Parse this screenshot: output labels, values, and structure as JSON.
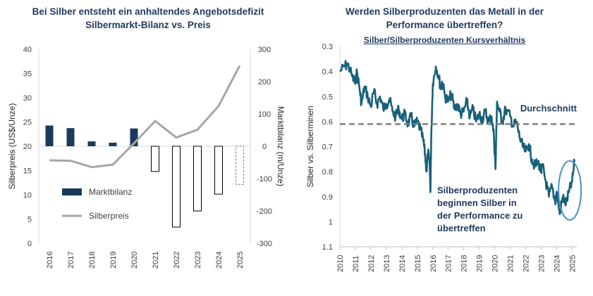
{
  "chart_data": [
    {
      "type": "bar",
      "title": "Bei Silber entsteht ein anhaltendes Angebotsdefizit",
      "subtitle": "Silbermarkt-Bilanz vs. Preis",
      "categories": [
        "2016",
        "2017",
        "2018",
        "2019",
        "2020",
        "2021",
        "2022",
        "2023",
        "2024",
        "2025"
      ],
      "ylabel": "Silberpreis (US$/Unze)",
      "y2label": "Marktbilanz (m/Unze)",
      "ylim": [
        0,
        40
      ],
      "y2lim": [
        -300,
        300
      ],
      "yticks": [
        "0",
        "5",
        "10",
        "15",
        "20",
        "25",
        "30",
        "35",
        "40"
      ],
      "y2ticks": [
        "-300",
        "-200",
        "-100",
        "0",
        "100",
        "200",
        "300"
      ],
      "legend_placement": "left-middle",
      "series": [
        {
          "name": "Marktbilanz",
          "axis": "right",
          "type": "bar",
          "color": "#1a3a5c",
          "values": [
            64,
            56,
            15,
            11,
            55,
            -78,
            -250,
            -200,
            -148,
            -118
          ],
          "styles": [
            "solid",
            "solid",
            "solid",
            "solid",
            "solid",
            "outline",
            "outline",
            "outline",
            "outline",
            "dashed"
          ]
        },
        {
          "name": "Silberpreis",
          "axis": "left",
          "type": "line",
          "color": "#a6a6a6",
          "values": [
            17.1,
            17.0,
            15.7,
            16.2,
            20.6,
            25.2,
            21.8,
            23.4,
            28.3,
            36.6
          ]
        }
      ]
    },
    {
      "type": "line",
      "title": "Werden Silberproduzenten das Metall in der Performance übertreffen?",
      "subtitle": "Silber/Silberproduzenten Kursverhältnis",
      "ylabel": "Silber vs. Silberminen",
      "xticks": [
        "2010",
        "2011",
        "2012",
        "2013",
        "2014",
        "2015",
        "2016",
        "2017",
        "2018",
        "2019",
        "2020",
        "2021",
        "2022",
        "2023",
        "2024",
        "2025"
      ],
      "yticks": [
        "0.3",
        "0.4",
        "0.5",
        "0.6",
        "0.7",
        "0.8",
        "0.9",
        "1",
        "1.1"
      ],
      "ylim": [
        0.3,
        1.1
      ],
      "y_inverted": true,
      "xlim": [
        2010,
        2025.3
      ],
      "average": 0.61,
      "average_label": "Durchschnitt",
      "annotation": "Silberproduzenten beginnen Silber in der Performance zu übertreffen",
      "color": "#17607a",
      "x": [
        2010.0,
        2010.3,
        2010.5,
        2010.8,
        2011.0,
        2011.1,
        2011.3,
        2011.4,
        2011.6,
        2011.8,
        2012.0,
        2012.2,
        2012.4,
        2012.6,
        2012.8,
        2013.0,
        2013.2,
        2013.4,
        2013.6,
        2013.8,
        2014.0,
        2014.2,
        2014.4,
        2014.6,
        2014.8,
        2015.0,
        2015.2,
        2015.4,
        2015.5,
        2015.6,
        2015.7,
        2015.8,
        2015.85,
        2015.9,
        2016.0,
        2016.2,
        2016.4,
        2016.5,
        2016.6,
        2016.8,
        2017.0,
        2017.2,
        2017.4,
        2017.6,
        2017.8,
        2018.0,
        2018.2,
        2018.4,
        2018.6,
        2018.8,
        2019.0,
        2019.2,
        2019.4,
        2019.6,
        2019.8,
        2019.95,
        2020.05,
        2020.15,
        2020.3,
        2020.5,
        2020.7,
        2021.0,
        2021.2,
        2021.4,
        2021.6,
        2021.8,
        2022.0,
        2022.2,
        2022.4,
        2022.6,
        2022.8,
        2023.0,
        2023.1,
        2023.3,
        2023.5,
        2023.7,
        2023.9,
        2024.0,
        2024.2,
        2024.4,
        2024.6,
        2024.8,
        2025.0,
        2025.15
      ],
      "y": [
        0.4,
        0.38,
        0.37,
        0.42,
        0.45,
        0.4,
        0.48,
        0.53,
        0.46,
        0.5,
        0.54,
        0.48,
        0.53,
        0.5,
        0.55,
        0.53,
        0.51,
        0.56,
        0.58,
        0.55,
        0.59,
        0.57,
        0.61,
        0.58,
        0.62,
        0.6,
        0.63,
        0.68,
        0.73,
        0.8,
        0.72,
        0.78,
        0.88,
        0.66,
        0.45,
        0.38,
        0.42,
        0.47,
        0.44,
        0.5,
        0.52,
        0.49,
        0.55,
        0.53,
        0.57,
        0.56,
        0.52,
        0.58,
        0.55,
        0.6,
        0.57,
        0.59,
        0.56,
        0.6,
        0.58,
        0.66,
        0.79,
        0.52,
        0.56,
        0.6,
        0.55,
        0.58,
        0.62,
        0.6,
        0.66,
        0.7,
        0.72,
        0.69,
        0.75,
        0.78,
        0.76,
        0.8,
        0.78,
        0.84,
        0.9,
        0.86,
        0.92,
        0.88,
        0.97,
        0.9,
        0.93,
        0.88,
        0.84,
        0.76
      ]
    }
  ]
}
